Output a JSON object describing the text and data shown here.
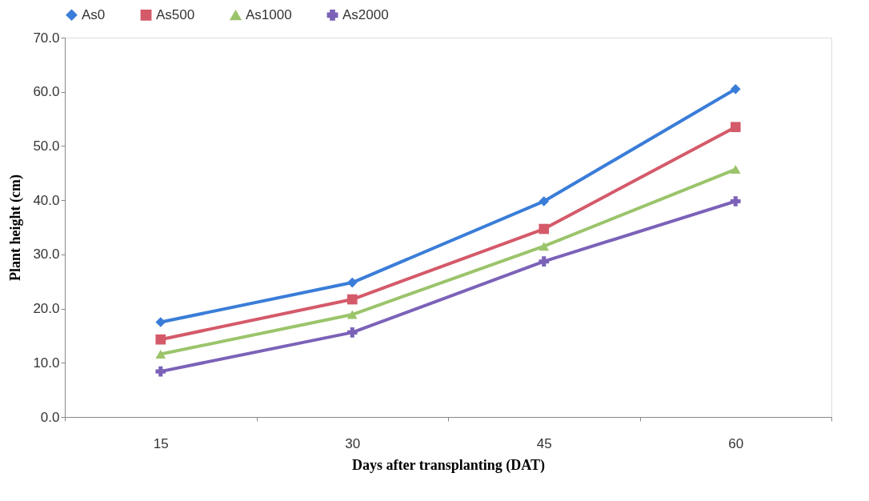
{
  "chart_data": {
    "type": "line",
    "xlabel": "Days after transplanting (DAT)",
    "ylabel": "Plant height (cm)",
    "categories": [
      "15",
      "30",
      "45",
      "60"
    ],
    "series": [
      {
        "name": "As0",
        "color": "#3a7dd8",
        "marker": "diamond",
        "values": [
          17.5,
          24.8,
          39.8,
          60.5
        ]
      },
      {
        "name": "As500",
        "color": "#d45a6a",
        "marker": "square",
        "values": [
          14.3,
          21.7,
          34.7,
          53.5
        ]
      },
      {
        "name": "As1000",
        "color": "#9bc46b",
        "marker": "triangle",
        "values": [
          11.6,
          18.9,
          31.5,
          45.7
        ]
      },
      {
        "name": "As2000",
        "color": "#7b62b8",
        "marker": "cross",
        "values": [
          8.4,
          15.6,
          28.7,
          39.8
        ]
      }
    ],
    "ylim": [
      0,
      70
    ],
    "yticks": [
      {
        "value": 0,
        "label": "0.0"
      },
      {
        "value": 10,
        "label": "10.0"
      },
      {
        "value": 20,
        "label": "20.0"
      },
      {
        "value": 30,
        "label": "30.0"
      },
      {
        "value": 40,
        "label": "40.0"
      },
      {
        "value": 50,
        "label": "50.0"
      },
      {
        "value": 60,
        "label": "60.0"
      },
      {
        "value": 70,
        "label": "70.0"
      }
    ],
    "grid": false,
    "legend": "top",
    "line_style": "solid"
  }
}
